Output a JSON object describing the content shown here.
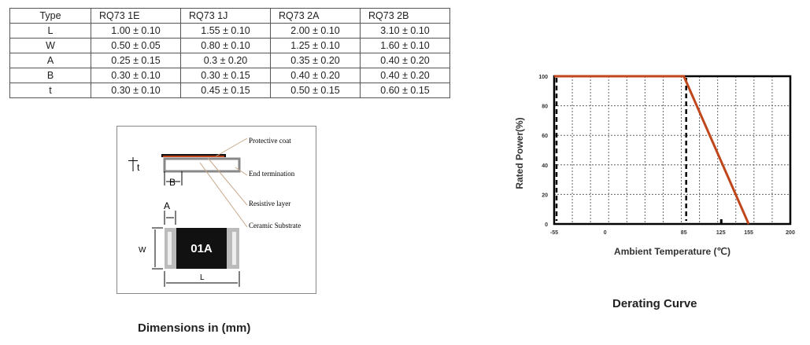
{
  "table": {
    "headers": [
      "Type",
      "RQ73 1E",
      "RQ73 1J",
      "RQ73 2A",
      "RQ73 2B"
    ],
    "rows": [
      [
        "L",
        "1.00 ± 0.10",
        "1.55 ± 0.10",
        "2.00 ± 0.10",
        "3.10 ± 0.10"
      ],
      [
        "W",
        "0.50 ± 0.05",
        "0.80 ± 0.10",
        "1.25 ± 0.10",
        "1.60 ± 0.10"
      ],
      [
        "A",
        "0.25 ± 0.15",
        "0.3 ± 0.20",
        "0.35 ± 0.20",
        "0.40 ± 0.20"
      ],
      [
        "B",
        "0.30 ± 0.10",
        "0.30 ± 0.15",
        "0.40 ± 0.20",
        "0.40 ± 0.20"
      ],
      [
        "t",
        "0.30 ± 0.10",
        "0.45 ± 0.15",
        "0.50 ± 0.15",
        "0.60 ± 0.15"
      ]
    ]
  },
  "diagram": {
    "labels": [
      "Protective coat",
      "End termination",
      "Resistive layer",
      "Ceramic Substrate"
    ],
    "dims": {
      "t": "t",
      "B": "B",
      "A": "A",
      "W": "W",
      "L": "L"
    },
    "marking": "01A",
    "caption": "Dimensions in (mm)"
  },
  "chart_data": {
    "type": "line",
    "title": "Derating Curve",
    "xlabel": "Ambient Temperature (℃)",
    "ylabel": "Rated Power(%)",
    "x_ticks": [
      -55,
      0,
      85,
      125,
      155,
      200
    ],
    "y_ticks": [
      0,
      20,
      40,
      60,
      80,
      100
    ],
    "xlim": [
      -55,
      200
    ],
    "ylim": [
      0,
      100
    ],
    "grid": true,
    "series": [
      {
        "x": [
          -55,
          85,
          155
        ],
        "y": [
          100,
          100,
          0
        ],
        "color": "#c0461b"
      }
    ],
    "markers": [
      -55,
      85
    ]
  }
}
